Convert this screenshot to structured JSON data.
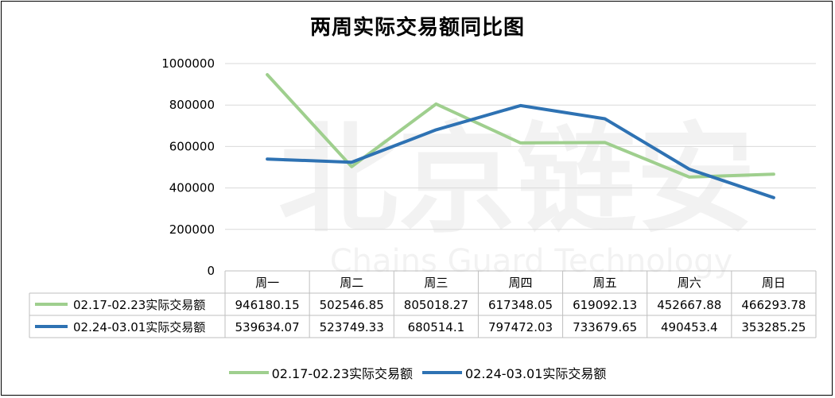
{
  "watermark": {
    "cn": "北京链安",
    "en": "Chains Guard Technology"
  },
  "chart_data": {
    "type": "line",
    "title": "两周实际交易额同比图",
    "categories": [
      "周一",
      "周二",
      "周三",
      "周四",
      "周五",
      "周六",
      "周日"
    ],
    "ylim": [
      0,
      1000000
    ],
    "yticks": [
      0,
      200000,
      400000,
      600000,
      800000,
      1000000
    ],
    "yticklabels": [
      "0",
      "200000",
      "400000",
      "600000",
      "800000",
      "1000000"
    ],
    "grid": true,
    "legend": "bottom",
    "series": [
      {
        "name": "02.17-02.23实际交易额",
        "color": "#9fcf8e",
        "values": [
          946180.15,
          502546.85,
          805018.27,
          617348.05,
          619092.13,
          452667.88,
          466293.78
        ],
        "labels": [
          "946180.15",
          "502546.85",
          "805018.27",
          "617348.05",
          "619092.13",
          "452667.88",
          "466293.78"
        ]
      },
      {
        "name": "02.24-03.01实际交易额",
        "color": "#2e72b3",
        "values": [
          539634.07,
          523749.33,
          680514.1,
          797472.03,
          733679.65,
          490453.4,
          353285.25
        ],
        "labels": [
          "539634.07",
          "523749.33",
          "680514.1",
          "797472.03",
          "733679.65",
          "490453.4",
          "353285.25"
        ]
      }
    ]
  }
}
